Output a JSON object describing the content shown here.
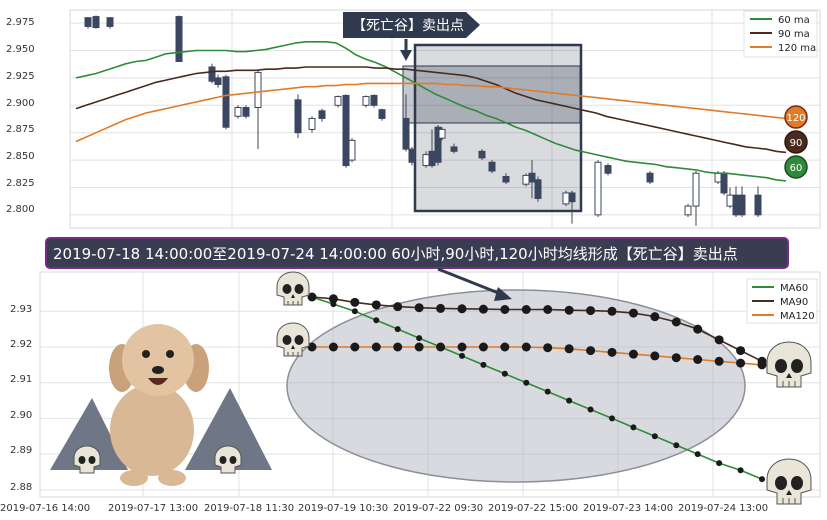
{
  "colors": {
    "ma60": "#2e8b3a",
    "ma90": "#4a2a1e",
    "ma120": "#e07b28",
    "banner_bg": "#3a3d52",
    "banner_border": "#7a2a8a",
    "highlight_box": "#2f3a4e",
    "ellipse": "#a9adb8",
    "grid": "#e2e2e2"
  },
  "top_panel": {
    "annotation_label": "【死亡谷】卖出点",
    "legend": [
      "60 ma",
      "90 ma",
      "120 ma"
    ],
    "badges": [
      "120",
      "90",
      "60"
    ]
  },
  "banner": {
    "text": "2019-07-18 14:00:00至2019-07-24 14:00:00 60小时,90小时,120小时均线形成【死亡谷】卖出点"
  },
  "bottom_panel": {
    "legend": [
      "MA60",
      "MA90",
      "MA120"
    ]
  },
  "chart_data": [
    {
      "type": "line",
      "title": "",
      "y_ticks": [
        "2.975",
        "2.950",
        "2.925",
        "2.900",
        "2.875",
        "2.850",
        "2.825",
        "2.800"
      ],
      "ylim": [
        2.788,
        2.987
      ],
      "series": [
        {
          "name": "60 ma",
          "x": [
            0,
            10,
            20,
            30,
            40,
            50,
            60,
            70,
            80,
            90,
            100,
            110,
            120,
            130,
            140,
            150,
            160,
            170,
            180,
            190,
            200,
            210,
            220,
            230,
            240,
            250,
            260,
            270,
            280,
            290,
            300,
            310,
            320,
            330,
            340,
            350,
            360,
            370,
            380,
            390,
            400,
            410,
            420,
            430,
            440,
            450,
            460,
            470,
            480,
            490,
            500,
            510,
            520,
            530,
            540,
            550,
            560,
            570,
            580,
            590,
            600,
            610,
            620,
            630,
            640,
            650,
            660,
            670,
            680,
            690,
            700,
            710
          ],
          "values": [
            2.925,
            2.927,
            2.929,
            2.932,
            2.935,
            2.938,
            2.94,
            2.941,
            2.944,
            2.947,
            2.948,
            2.949,
            2.95,
            2.95,
            2.95,
            2.95,
            2.949,
            2.949,
            2.95,
            2.951,
            2.953,
            2.955,
            2.957,
            2.958,
            2.958,
            2.958,
            2.957,
            2.952,
            2.946,
            2.942,
            2.939,
            2.935,
            2.93,
            2.925,
            2.92,
            2.915,
            2.91,
            2.906,
            2.902,
            2.898,
            2.895,
            2.891,
            2.888,
            2.884,
            2.88,
            2.877,
            2.873,
            2.869,
            2.865,
            2.862,
            2.859,
            2.857,
            2.855,
            2.853,
            2.851,
            2.849,
            2.848,
            2.847,
            2.846,
            2.844,
            2.843,
            2.842,
            2.841,
            2.839,
            2.838,
            2.838,
            2.837,
            2.836,
            2.835,
            2.834,
            2.832,
            2.831
          ]
        },
        {
          "name": "90 ma",
          "x": [
            0,
            10,
            20,
            30,
            40,
            50,
            60,
            70,
            80,
            90,
            100,
            110,
            120,
            130,
            140,
            150,
            160,
            170,
            180,
            190,
            200,
            210,
            220,
            230,
            240,
            250,
            260,
            270,
            280,
            290,
            300,
            310,
            320,
            330,
            340,
            350,
            360,
            370,
            380,
            390,
            400,
            410,
            420,
            430,
            440,
            450,
            460,
            470,
            480,
            490,
            500,
            510,
            520,
            530,
            540,
            550,
            560,
            570,
            580,
            590,
            600,
            610,
            620,
            630,
            640,
            650,
            660,
            670,
            680,
            690,
            700,
            710
          ],
          "values": [
            2.897,
            2.9,
            2.903,
            2.906,
            2.909,
            2.912,
            2.915,
            2.918,
            2.921,
            2.923,
            2.925,
            2.927,
            2.929,
            2.93,
            2.931,
            2.931,
            2.932,
            2.932,
            2.932,
            2.933,
            2.933,
            2.934,
            2.934,
            2.935,
            2.935,
            2.935,
            2.935,
            2.935,
            2.935,
            2.935,
            2.934,
            2.934,
            2.933,
            2.933,
            2.932,
            2.931,
            2.93,
            2.929,
            2.928,
            2.927,
            2.925,
            2.922,
            2.919,
            2.915,
            2.911,
            2.908,
            2.905,
            2.903,
            2.901,
            2.899,
            2.897,
            2.895,
            2.893,
            2.89,
            2.888,
            2.886,
            2.884,
            2.882,
            2.88,
            2.878,
            2.876,
            2.874,
            2.872,
            2.87,
            2.868,
            2.866,
            2.864,
            2.862,
            2.861,
            2.86,
            2.858,
            2.857
          ]
        },
        {
          "name": "120 ma",
          "x": [
            0,
            10,
            20,
            30,
            40,
            50,
            60,
            70,
            80,
            90,
            100,
            110,
            120,
            130,
            140,
            150,
            160,
            170,
            180,
            190,
            200,
            210,
            220,
            230,
            240,
            250,
            260,
            270,
            280,
            290,
            300,
            310,
            320,
            330,
            340,
            350,
            360,
            370,
            380,
            390,
            400,
            410,
            420,
            430,
            440,
            450,
            460,
            470,
            480,
            490,
            500,
            510,
            520,
            530,
            540,
            550,
            560,
            570,
            580,
            590,
            600,
            610,
            620,
            630,
            640,
            650,
            660,
            670,
            680,
            690,
            700,
            710
          ],
          "values": [
            2.867,
            2.871,
            2.875,
            2.879,
            2.883,
            2.887,
            2.89,
            2.893,
            2.895,
            2.897,
            2.899,
            2.901,
            2.903,
            2.905,
            2.907,
            2.909,
            2.91,
            2.911,
            2.912,
            2.913,
            2.914,
            2.915,
            2.916,
            2.917,
            2.917,
            2.918,
            2.918,
            2.919,
            2.919,
            2.92,
            2.92,
            2.92,
            2.92,
            2.92,
            2.92,
            2.92,
            2.92,
            2.919,
            2.919,
            2.918,
            2.918,
            2.917,
            2.917,
            2.916,
            2.915,
            2.914,
            2.913,
            2.912,
            2.911,
            2.91,
            2.909,
            2.908,
            2.907,
            2.906,
            2.905,
            2.904,
            2.903,
            2.902,
            2.901,
            2.9,
            2.899,
            2.898,
            2.897,
            2.896,
            2.895,
            2.894,
            2.893,
            2.892,
            2.891,
            2.89,
            2.889,
            2.888
          ]
        }
      ],
      "candles": [
        {
          "x": 12,
          "o": 2.98,
          "c": 2.972,
          "h": 2.98,
          "l": 2.97
        },
        {
          "x": 20,
          "o": 2.981,
          "c": 2.971,
          "h": 2.982,
          "l": 2.97
        },
        {
          "x": 34,
          "o": 2.98,
          "c": 2.972,
          "h": 2.98,
          "l": 2.97
        },
        {
          "x": 103,
          "o": 2.981,
          "c": 2.94,
          "h": 2.982,
          "l": 2.94
        },
        {
          "x": 136,
          "o": 2.935,
          "c": 2.922,
          "h": 2.938,
          "l": 2.92
        },
        {
          "x": 142,
          "o": 2.925,
          "c": 2.919,
          "h": 2.928,
          "l": 2.916
        },
        {
          "x": 150,
          "o": 2.926,
          "c": 2.88,
          "h": 2.928,
          "l": 2.878
        },
        {
          "x": 162,
          "o": 2.89,
          "c": 2.898,
          "h": 2.9,
          "l": 2.888
        },
        {
          "x": 170,
          "o": 2.898,
          "c": 2.89,
          "h": 2.9,
          "l": 2.888
        },
        {
          "x": 182,
          "o": 2.898,
          "c": 2.93,
          "h": 2.932,
          "l": 2.86
        },
        {
          "x": 222,
          "o": 2.905,
          "c": 2.875,
          "h": 2.91,
          "l": 2.87
        },
        {
          "x": 236,
          "o": 2.878,
          "c": 2.888,
          "h": 2.89,
          "l": 2.875
        },
        {
          "x": 246,
          "o": 2.895,
          "c": 2.888,
          "h": 2.897,
          "l": 2.885
        },
        {
          "x": 262,
          "o": 2.9,
          "c": 2.908,
          "h": 2.909,
          "l": 2.898
        },
        {
          "x": 270,
          "o": 2.909,
          "c": 2.845,
          "h": 2.91,
          "l": 2.843
        },
        {
          "x": 276,
          "o": 2.85,
          "c": 2.868,
          "h": 2.87,
          "l": 2.848
        },
        {
          "x": 290,
          "o": 2.9,
          "c": 2.908,
          "h": 2.909,
          "l": 2.898
        },
        {
          "x": 298,
          "o": 2.909,
          "c": 2.9,
          "h": 2.91,
          "l": 2.898
        },
        {
          "x": 306,
          "o": 2.896,
          "c": 2.888,
          "h": 2.897,
          "l": 2.886
        },
        {
          "x": 330,
          "o": 2.888,
          "c": 2.86,
          "h": 2.91,
          "l": 2.858
        },
        {
          "x": 336,
          "o": 2.86,
          "c": 2.848,
          "h": 2.862,
          "l": 2.845
        },
        {
          "x": 350,
          "o": 2.845,
          "c": 2.855,
          "h": 2.858,
          "l": 2.843
        },
        {
          "x": 356,
          "o": 2.858,
          "c": 2.845,
          "h": 2.878,
          "l": 2.843
        },
        {
          "x": 362,
          "o": 2.88,
          "c": 2.848,
          "h": 2.882,
          "l": 2.845
        },
        {
          "x": 366,
          "o": 2.87,
          "c": 2.878,
          "h": 2.88,
          "l": 2.868
        },
        {
          "x": 378,
          "o": 2.862,
          "c": 2.858,
          "h": 2.865,
          "l": 2.856
        },
        {
          "x": 406,
          "o": 2.858,
          "c": 2.852,
          "h": 2.86,
          "l": 2.85
        },
        {
          "x": 416,
          "o": 2.848,
          "c": 2.84,
          "h": 2.85,
          "l": 2.838
        },
        {
          "x": 430,
          "o": 2.835,
          "c": 2.83,
          "h": 2.838,
          "l": 2.828
        },
        {
          "x": 450,
          "o": 2.828,
          "c": 2.836,
          "h": 2.838,
          "l": 2.826
        },
        {
          "x": 456,
          "o": 2.838,
          "c": 2.83,
          "h": 2.85,
          "l": 2.815
        },
        {
          "x": 462,
          "o": 2.832,
          "c": 2.815,
          "h": 2.835,
          "l": 2.812
        },
        {
          "x": 490,
          "o": 2.81,
          "c": 2.82,
          "h": 2.822,
          "l": 2.808
        },
        {
          "x": 496,
          "o": 2.82,
          "c": 2.812,
          "h": 2.822,
          "l": 2.792
        },
        {
          "x": 522,
          "o": 2.8,
          "c": 2.848,
          "h": 2.85,
          "l": 2.798
        },
        {
          "x": 532,
          "o": 2.845,
          "c": 2.838,
          "h": 2.847,
          "l": 2.836
        },
        {
          "x": 574,
          "o": 2.838,
          "c": 2.83,
          "h": 2.84,
          "l": 2.828
        },
        {
          "x": 612,
          "o": 2.8,
          "c": 2.808,
          "h": 2.81,
          "l": 2.798
        },
        {
          "x": 620,
          "o": 2.808,
          "c": 2.838,
          "h": 2.84,
          "l": 2.79
        },
        {
          "x": 642,
          "o": 2.83,
          "c": 2.838,
          "h": 2.84,
          "l": 2.828
        },
        {
          "x": 648,
          "o": 2.838,
          "c": 2.82,
          "h": 2.84,
          "l": 2.818
        },
        {
          "x": 654,
          "o": 2.808,
          "c": 2.818,
          "h": 2.825,
          "l": 2.806
        },
        {
          "x": 660,
          "o": 2.818,
          "c": 2.8,
          "h": 2.826,
          "l": 2.798
        },
        {
          "x": 666,
          "o": 2.818,
          "c": 2.8,
          "h": 2.826,
          "l": 2.798
        },
        {
          "x": 682,
          "o": 2.818,
          "c": 2.8,
          "h": 2.826,
          "l": 2.798
        }
      ]
    },
    {
      "type": "line",
      "title": "",
      "x_tick_labels": [
        "2019-07-16 14:00",
        "2019-07-17 13:00",
        "2019-07-18 11:30",
        "2019-07-19 10:30",
        "2019-07-22 09:30",
        "2019-07-22 15:00",
        "2019-07-23 14:00",
        "2019-07-24 13:00"
      ],
      "y_ticks": [
        "2.93",
        "2.92",
        "2.91",
        "2.90",
        "2.89",
        "2.88"
      ],
      "ylim": [
        2.878,
        2.941
      ],
      "series": [
        {
          "name": "MA60",
          "values": [
            2.934,
            2.932,
            2.93,
            2.9275,
            2.925,
            2.9225,
            2.92,
            2.9175,
            2.915,
            2.9125,
            2.91,
            2.9075,
            2.905,
            2.9025,
            2.9,
            2.8975,
            2.895,
            2.8925,
            2.89,
            2.8875,
            2.8855,
            2.883
          ]
        },
        {
          "name": "MA90",
          "values": [
            2.934,
            2.9335,
            2.9325,
            2.9318,
            2.9313,
            2.931,
            2.9308,
            2.9307,
            2.9306,
            2.9305,
            2.9305,
            2.9305,
            2.9303,
            2.9302,
            2.93,
            2.9295,
            2.9285,
            2.927,
            2.925,
            2.922,
            2.919,
            2.916
          ]
        },
        {
          "name": "MA120",
          "values": [
            2.92,
            2.92,
            2.92,
            2.92,
            2.92,
            2.92,
            2.92,
            2.92,
            2.92,
            2.92,
            2.92,
            2.9198,
            2.9195,
            2.919,
            2.9185,
            2.918,
            2.9175,
            2.917,
            2.9165,
            2.916,
            2.9155,
            2.915
          ]
        }
      ]
    }
  ]
}
